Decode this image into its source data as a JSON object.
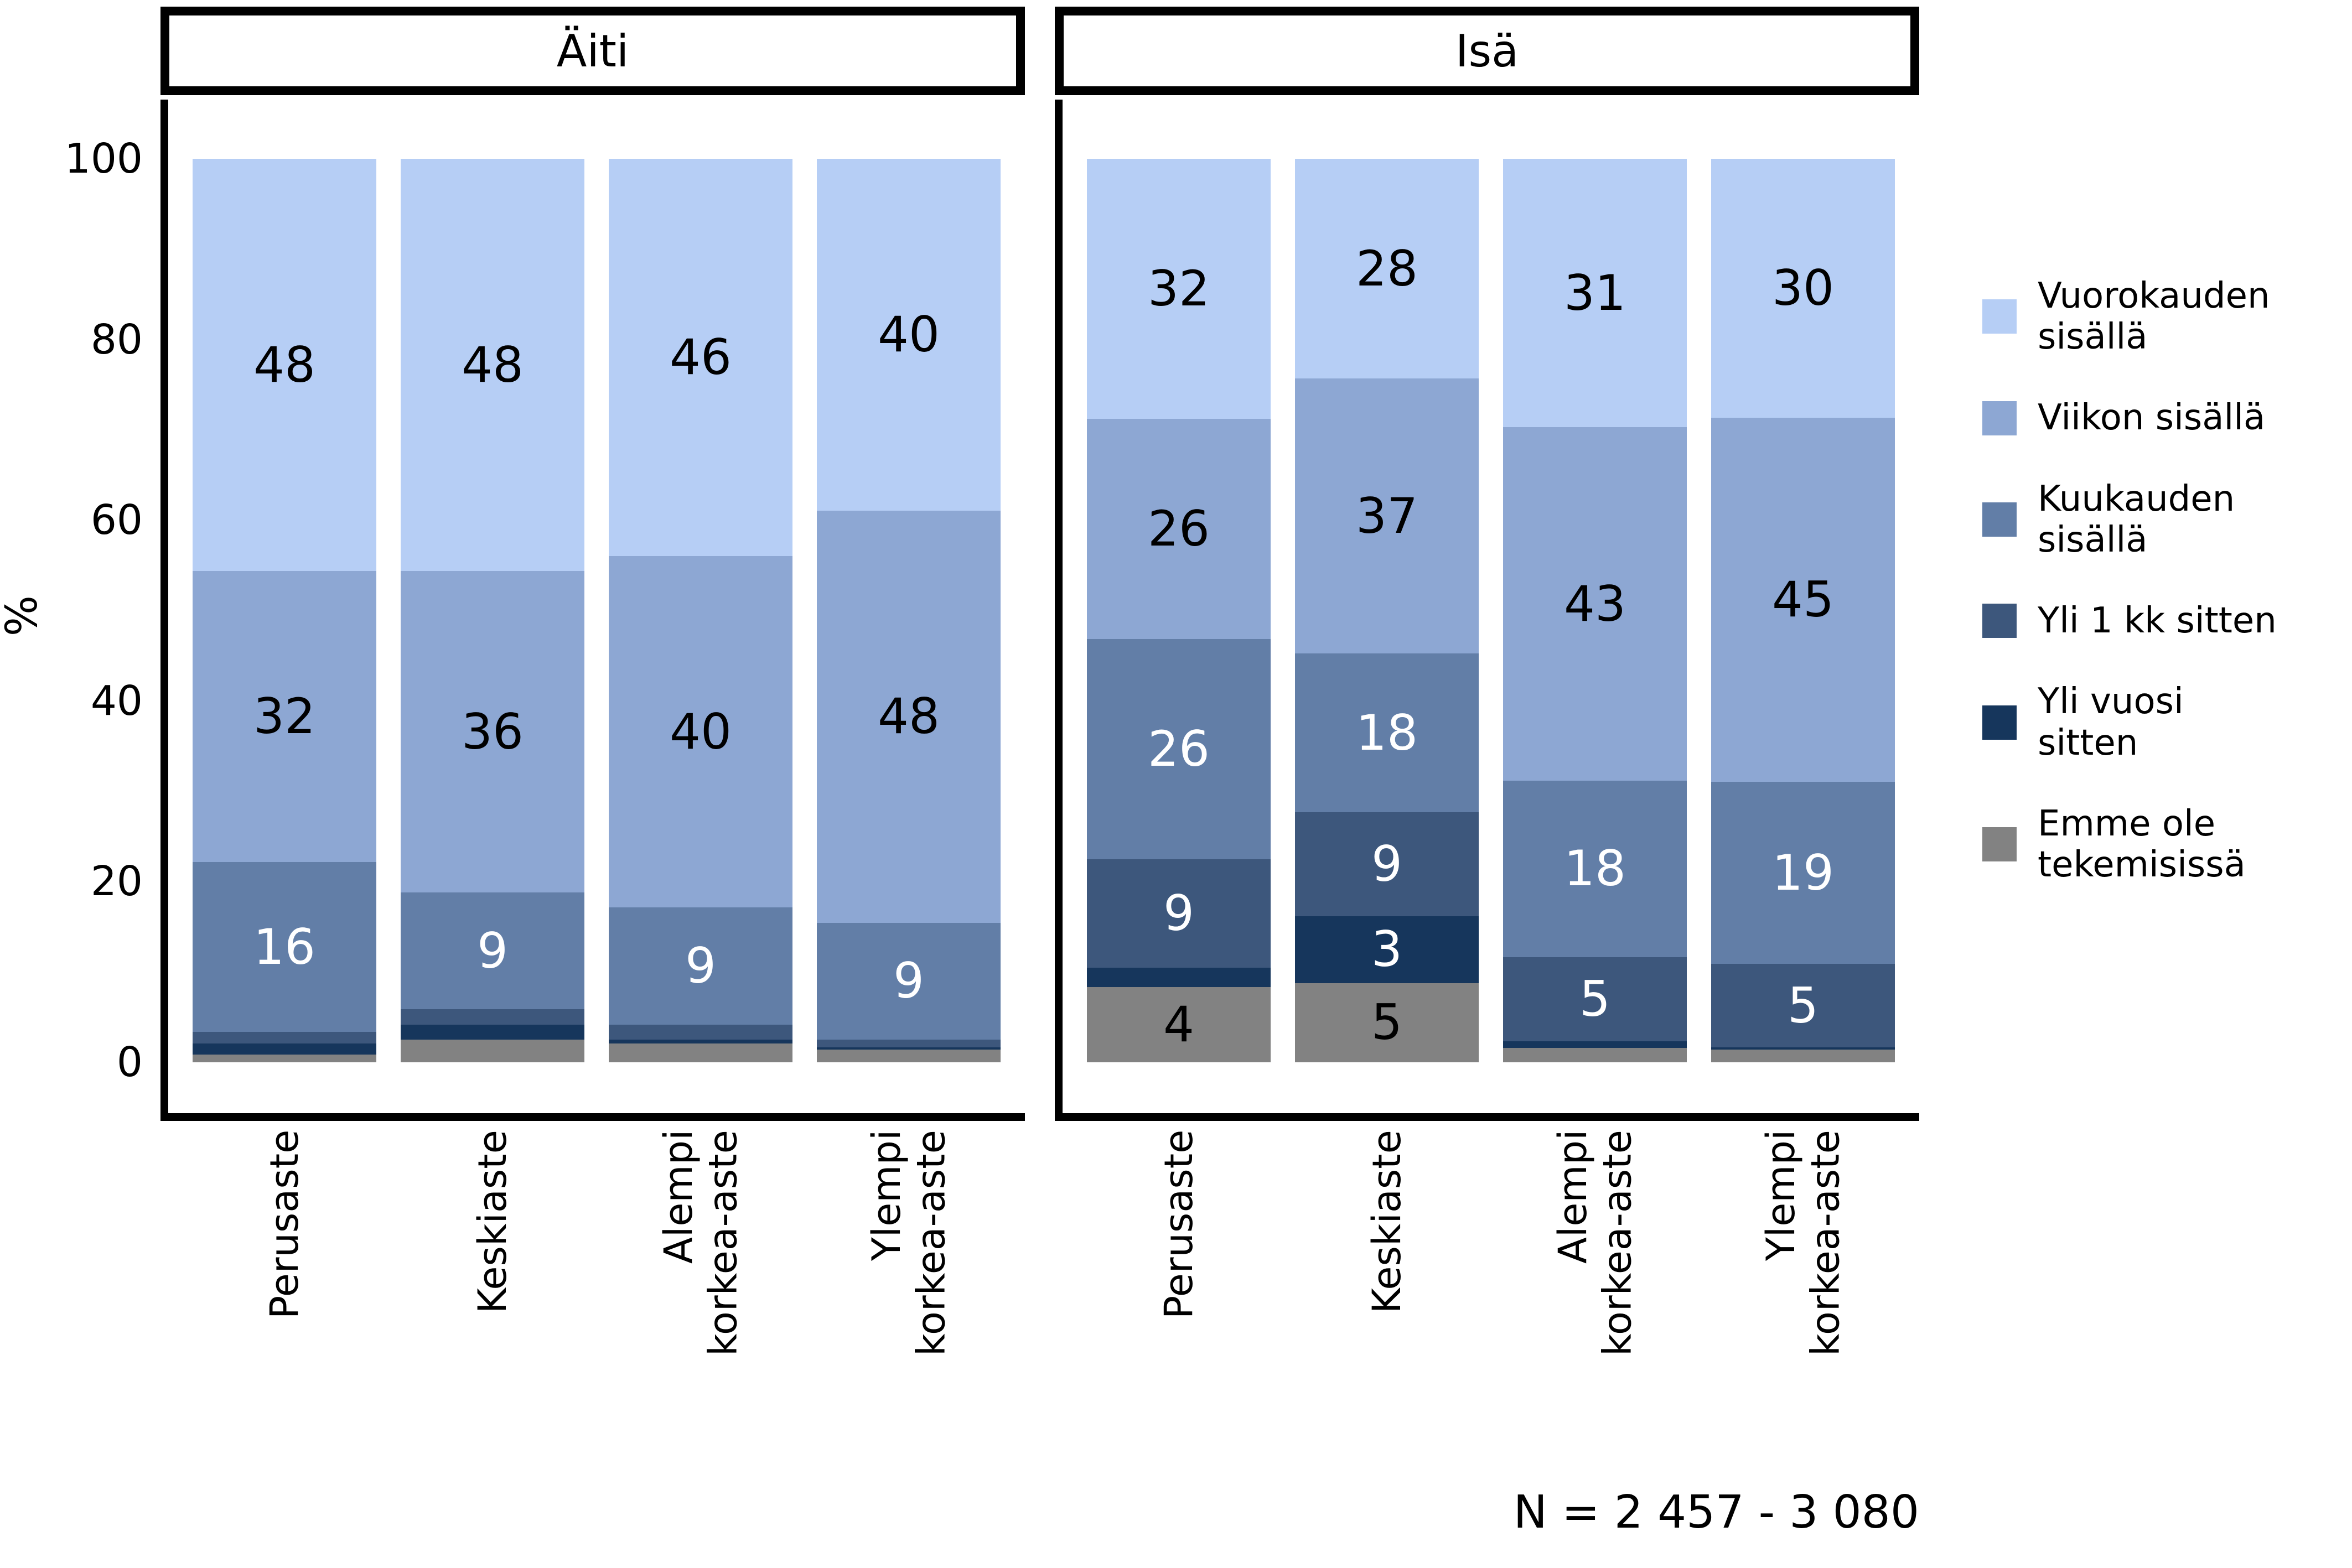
{
  "page": {
    "ylabel": "%",
    "note": "N = 2 457 - 3 080"
  },
  "chart_data": {
    "type": "bar",
    "variant": "stacked-percent",
    "title": "",
    "xlabel": "",
    "ylabel": "%",
    "ylim": [
      0,
      100
    ],
    "yticks": [
      100,
      80,
      60,
      40,
      20,
      0
    ],
    "grid": false,
    "legend_position": "right",
    "note": "N = 2 457 - 3 080",
    "series": [
      {
        "name": "Vuorokauden sisällä",
        "display": "Vuorokauden\nsisällä",
        "color": "#b6cef5",
        "label_color": "#000000"
      },
      {
        "name": "Viikon sisällä",
        "display": "Viikon sisällä",
        "color": "#8da7d3",
        "label_color": "#000000"
      },
      {
        "name": "Kuukauden sisällä",
        "display": "Kuukauden\nsisällä",
        "color": "#627ea7",
        "label_color": "#ffffff"
      },
      {
        "name": "Yli 1 kk sitten",
        "display": "Yli 1 kk sitten",
        "color": "#3d577c",
        "label_color": "#ffffff"
      },
      {
        "name": "Yli vuosi sitten",
        "display": "Yli vuosi\nsitten",
        "color": "#16365c",
        "label_color": "#ffffff"
      },
      {
        "name": "Emme ole tekemisissä",
        "display": "Emme ole\ntekemisissä",
        "color": "#828282",
        "label_color": "#000000"
      }
    ],
    "facets": [
      {
        "title": "Äiti",
        "categories": [
          "Perusaste",
          "Keskiaste",
          "Alempi\nkorkea-aste",
          "Ylempi\nkorkea-aste"
        ],
        "bars": [
          {
            "category": "Perusaste",
            "values": [
              48,
              32,
              16,
              1.5,
              1.5,
              1
            ],
            "labels": [
              "48",
              "32",
              "16",
              "",
              "",
              ""
            ]
          },
          {
            "category": "Keskiaste",
            "values": [
              48,
              36,
              9,
              2,
              2,
              3
            ],
            "labels": [
              "48",
              "36",
              "9",
              "",
              "",
              ""
            ]
          },
          {
            "category": "Alempi korkea-aste",
            "values": [
              46,
              40,
              9,
              2,
              0.5,
              2.5
            ],
            "labels": [
              "46",
              "40",
              "9",
              "",
              "",
              ""
            ]
          },
          {
            "category": "Ylempi korkea-aste",
            "values": [
              40,
              48,
              9,
              1,
              0.3,
              1.7
            ],
            "labels": [
              "40",
              "48",
              "9",
              "",
              "",
              ""
            ]
          }
        ]
      },
      {
        "title": "Isä",
        "categories": [
          "Perusaste",
          "Keskiaste",
          "Alempi\nkorkea-aste",
          "Ylempi\nkorkea-aste"
        ],
        "bars": [
          {
            "category": "Perusaste",
            "values": [
              32,
              26,
              26,
              9,
              3,
              4
            ],
            "labels": [
              "32",
              "26",
              "26",
              "9",
              "",
              "4"
            ]
          },
          {
            "category": "Keskiaste",
            "values": [
              28,
              37,
              18,
              9,
              3,
              5
            ],
            "labels": [
              "28",
              "37",
              "18",
              "9",
              "3",
              "5"
            ]
          },
          {
            "category": "Alempi korkea-aste",
            "values": [
              31,
              43,
              18,
              5,
              1,
              2
            ],
            "labels": [
              "31",
              "43",
              "18",
              "5",
              "",
              ""
            ]
          },
          {
            "category": "Ylempi korkea-aste",
            "values": [
              30,
              45,
              19,
              5,
              0.3,
              1.8
            ],
            "labels": [
              "30",
              "45",
              "19",
              "5",
              "",
              ""
            ]
          }
        ]
      }
    ]
  }
}
